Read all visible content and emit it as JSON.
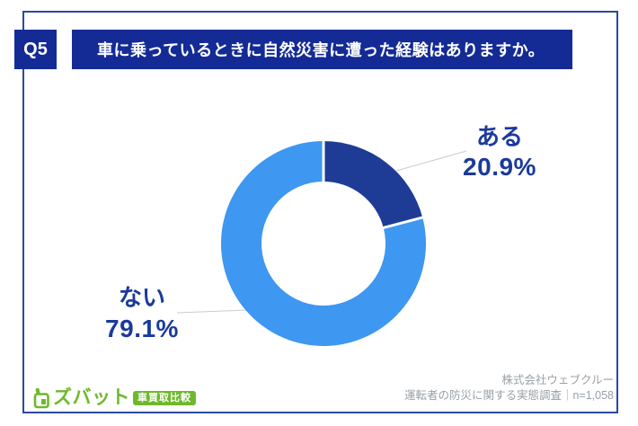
{
  "header": {
    "q_label": "Q5",
    "title": "車に乗っているときに自然災害に遭った経験はありますか。"
  },
  "chart_data": {
    "type": "pie",
    "donut": true,
    "title": "車に乗っているときに自然災害に遭った経験はありますか。",
    "categories": [
      "ある",
      "ない"
    ],
    "values": [
      20.9,
      79.1
    ],
    "unit": "%",
    "colors": [
      "#1e3c96",
      "#3e97f0"
    ],
    "start_angle_deg": 0,
    "clockwise": true,
    "labels": [
      {
        "name": "ある",
        "value_text": "20.9%"
      },
      {
        "name": "ない",
        "value_text": "79.1%"
      }
    ]
  },
  "footer": {
    "company": "株式会社ウェブクルー",
    "survey": "運転者の防災に関する実態調査｜n=1,058"
  },
  "logo": {
    "brand": "ズバット",
    "badge": "車買取比較",
    "brand_color": "#6eb92b"
  },
  "theme": {
    "navy": "#142b96",
    "label_navy": "#1b3a9b",
    "frame_border": "#2b4a9e",
    "footer_gray": "#9aa0a6"
  }
}
